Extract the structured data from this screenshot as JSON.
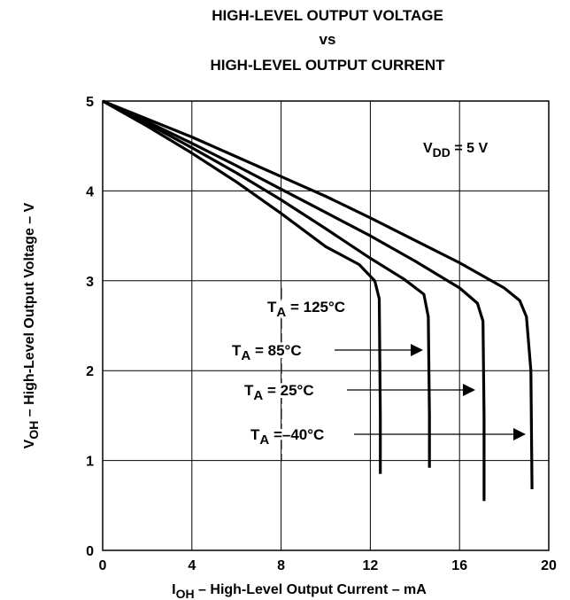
{
  "chart_data": {
    "type": "line",
    "title_lines": [
      "HIGH-LEVEL OUTPUT VOLTAGE",
      "vs",
      "HIGH-LEVEL OUTPUT CURRENT"
    ],
    "xlabel": {
      "main": "I",
      "sub": "OH",
      "rest": " – High-Level Output Current – mA"
    },
    "ylabel": {
      "main": "V",
      "sub": "OH",
      "rest": " – High-Level Output Voltage – V"
    },
    "xlim": [
      0,
      20
    ],
    "ylim": [
      0,
      5
    ],
    "xticks": [
      0,
      4,
      8,
      12,
      16,
      20
    ],
    "yticks": [
      0,
      1,
      2,
      3,
      4,
      5
    ],
    "grid": true,
    "condition": {
      "main": "V",
      "sub": "DD",
      "rest": " = 5 V"
    },
    "series": [
      {
        "name": "T_A = 125°C",
        "label_main": "T",
        "label_sub": "A",
        "label_rest": " = 125°C",
        "x": [
          0,
          2,
          4,
          6,
          8,
          10,
          11.5,
          12.2,
          12.4,
          12.45,
          12.45
        ],
        "y": [
          5,
          4.72,
          4.42,
          4.1,
          3.75,
          3.38,
          3.18,
          3.0,
          2.8,
          1.5,
          0.85
        ]
      },
      {
        "name": "T_A = 85°C",
        "label_main": "T",
        "label_sub": "A",
        "label_rest": " = 85°C",
        "x": [
          0,
          2,
          4,
          6,
          8,
          10,
          12,
          13.5,
          14.4,
          14.6,
          14.65,
          14.65
        ],
        "y": [
          5,
          4.75,
          4.48,
          4.2,
          3.9,
          3.58,
          3.25,
          3.02,
          2.85,
          2.6,
          1.5,
          0.92
        ]
      },
      {
        "name": "T_A = 25°C",
        "label_main": "T",
        "label_sub": "A",
        "label_rest": " = 25°C",
        "x": [
          0,
          2,
          4,
          6,
          8,
          10,
          12,
          14,
          16,
          16.8,
          17.05,
          17.1,
          17.1
        ],
        "y": [
          5,
          4.77,
          4.53,
          4.28,
          4.02,
          3.76,
          3.5,
          3.22,
          2.92,
          2.75,
          2.55,
          1.5,
          0.55
        ]
      },
      {
        "name": "T_A = –40°C",
        "label_main": "T",
        "label_sub": "A",
        "label_rest": " =–40°C",
        "x": [
          0,
          2,
          4,
          6,
          8,
          10,
          12,
          14,
          16,
          18,
          18.7,
          19.0,
          19.2,
          19.25
        ],
        "y": [
          5,
          4.8,
          4.6,
          4.38,
          4.16,
          3.94,
          3.7,
          3.45,
          3.2,
          2.92,
          2.78,
          2.6,
          2.0,
          0.68
        ]
      }
    ]
  }
}
